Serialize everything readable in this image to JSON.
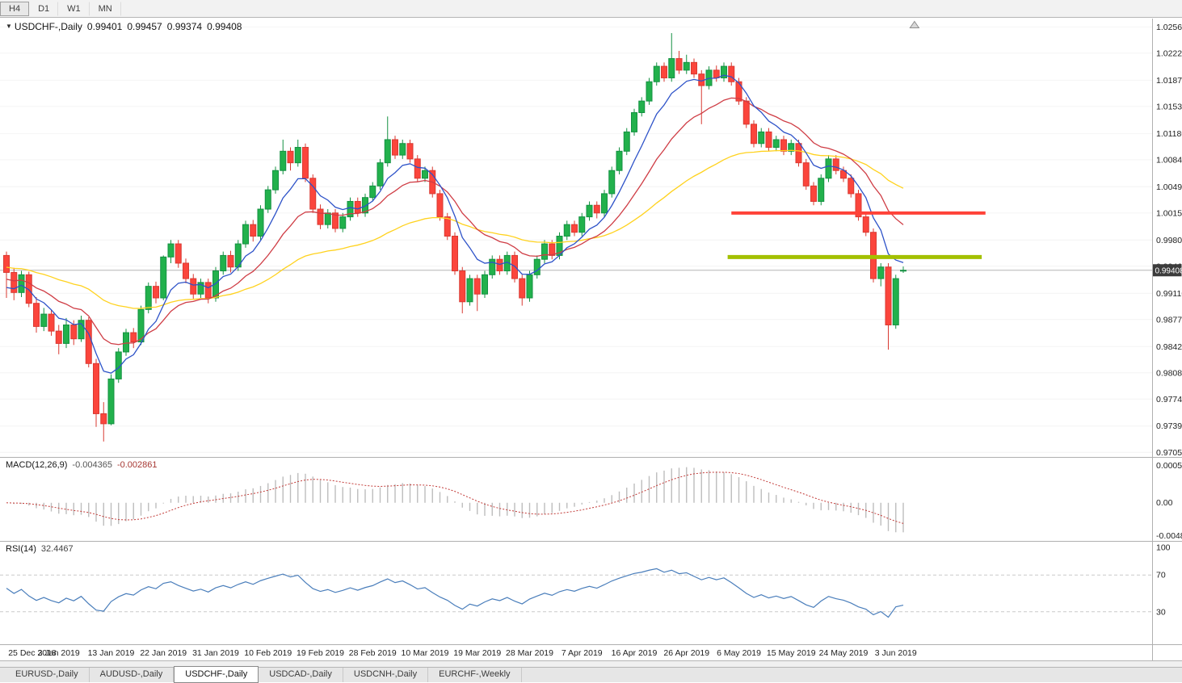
{
  "app": {
    "toolbar": {
      "timeframes": [
        {
          "label": "H4",
          "active": true
        },
        {
          "label": "D1",
          "active": false
        },
        {
          "label": "W1",
          "active": false
        },
        {
          "label": "MN",
          "active": false
        }
      ]
    },
    "tabs": [
      {
        "label": "EURUSD-,Daily",
        "active": false
      },
      {
        "label": "AUDUSD-,Daily",
        "active": false
      },
      {
        "label": "USDCHF-,Daily",
        "active": true
      },
      {
        "label": "USDCAD-,Daily",
        "active": false
      },
      {
        "label": "USDCNH-,Daily",
        "active": false
      },
      {
        "label": "EURCHF-,Weekly",
        "active": false
      }
    ]
  },
  "chart": {
    "title_symbol": "USDCHF-,Daily",
    "open": "0.99401",
    "high": "0.99457",
    "low": "0.99374",
    "close": "0.99408",
    "price_badge": "0.99408"
  },
  "indicators": {
    "macd": {
      "label": "MACD(12,26,9)",
      "main_value": "-0.004365",
      "signal_value": "-0.002861",
      "axis_max": "0.0005999",
      "axis_zero": "0.00",
      "axis_min": "-0.004858"
    },
    "rsi": {
      "label": "RSI(14)",
      "value": "32.4467",
      "axis": [
        "100",
        "70",
        "30"
      ],
      "levels": [
        70,
        30
      ]
    }
  },
  "chart_data": {
    "type": "candlestick",
    "symbol": "USDCHF",
    "timeframe": "Daily",
    "ylim": [
      0.9699,
      1.02595
    ],
    "price_axis": [
      "1.02560",
      "1.02220",
      "1.01870",
      "1.01530",
      "1.01180",
      "1.00840",
      "1.00490",
      "1.00150",
      "0.99800",
      "0.99460",
      "0.99110",
      "0.98770",
      "0.98420",
      "0.98080",
      "0.97740",
      "0.97390",
      "0.97050"
    ],
    "date_axis": [
      "25 Dec 2018",
      "3 Jan 2019",
      "13 Jan 2019",
      "22 Jan 2019",
      "31 Jan 2019",
      "10 Feb 2019",
      "19 Feb 2019",
      "28 Feb 2019",
      "10 Mar 2019",
      "19 Mar 2019",
      "28 Mar 2019",
      "7 Apr 2019",
      "16 Apr 2019",
      "26 Apr 2019",
      "6 May 2019",
      "15 May 2019",
      "24 May 2019",
      "3 Jun 2019"
    ],
    "date_tick_interval": 7,
    "current_price": 0.99408,
    "colors": {
      "bull": "#22b14c",
      "bull_border": "#149142",
      "bear": "#fb453c",
      "bear_border": "#d93a32",
      "ma_fast": "#2d52c8",
      "ma_mid": "#cf3d45",
      "ma_slow": "#ffd21e",
      "macd_hist": "#bdbdbd",
      "macd_signal": "#c23b38",
      "rsi": "#4a7ebb",
      "resistance": "#ff4238",
      "support": "#a3c000",
      "current_price_line": "#b5b5b5",
      "badge_bg": "#3c3c3c",
      "grid": "#f4f4f4",
      "level_dash": "#c9c9c9"
    },
    "moving_averages": [
      {
        "period": 7,
        "seed": 0.9912,
        "color_key": "ma_fast"
      },
      {
        "period": 16,
        "seed": 0.9928,
        "color_key": "ma_mid"
      },
      {
        "period": 45,
        "seed": 0.9945,
        "color_key": "ma_slow"
      }
    ],
    "macd_params": {
      "fast": 12,
      "slow": 26,
      "signal": 9
    },
    "rsi_period": 14,
    "horizontal_lines": [
      {
        "price": 1.0015,
        "from_index": 97,
        "to_index": 131,
        "color_key": "resistance",
        "width": 4
      },
      {
        "price": 0.9958,
        "from_index": 96.5,
        "to_index": 130.5,
        "color_key": "support",
        "width": 5
      }
    ],
    "shift_marker_index": 121.5,
    "candles": [
      [
        0.996,
        0.9965,
        0.9905,
        0.9938
      ],
      [
        0.9938,
        0.9944,
        0.9902,
        0.9912
      ],
      [
        0.9912,
        0.994,
        0.9906,
        0.9935
      ],
      [
        0.9935,
        0.9939,
        0.9893,
        0.9898
      ],
      [
        0.9898,
        0.9906,
        0.986,
        0.9868
      ],
      [
        0.9868,
        0.9892,
        0.9862,
        0.9884
      ],
      [
        0.9884,
        0.989,
        0.9856,
        0.9862
      ],
      [
        0.9862,
        0.987,
        0.9832,
        0.9846
      ],
      [
        0.9846,
        0.9879,
        0.984,
        0.987
      ],
      [
        0.987,
        0.9876,
        0.9844,
        0.9852
      ],
      [
        0.9852,
        0.9882,
        0.9848,
        0.9876
      ],
      [
        0.9876,
        0.988,
        0.9815,
        0.982
      ],
      [
        0.982,
        0.9826,
        0.9738,
        0.9755
      ],
      [
        0.9755,
        0.977,
        0.9719,
        0.9742
      ],
      [
        0.9742,
        0.9806,
        0.974,
        0.98
      ],
      [
        0.98,
        0.984,
        0.9795,
        0.9835
      ],
      [
        0.9835,
        0.9865,
        0.983,
        0.986
      ],
      [
        0.986,
        0.9866,
        0.984,
        0.9848
      ],
      [
        0.9848,
        0.9895,
        0.9844,
        0.989
      ],
      [
        0.989,
        0.9925,
        0.9885,
        0.992
      ],
      [
        0.992,
        0.9926,
        0.9898,
        0.9905
      ],
      [
        0.9905,
        0.996,
        0.9902,
        0.9958
      ],
      [
        0.9958,
        0.998,
        0.995,
        0.9975
      ],
      [
        0.9975,
        0.998,
        0.9944,
        0.995
      ],
      [
        0.995,
        0.9956,
        0.9924,
        0.993
      ],
      [
        0.993,
        0.9936,
        0.9904,
        0.991
      ],
      [
        0.991,
        0.993,
        0.9905,
        0.9925
      ],
      [
        0.9925,
        0.993,
        0.9898,
        0.9905
      ],
      [
        0.9905,
        0.9945,
        0.99,
        0.994
      ],
      [
        0.994,
        0.9965,
        0.9935,
        0.996
      ],
      [
        0.996,
        0.9966,
        0.9938,
        0.9945
      ],
      [
        0.9945,
        0.998,
        0.994,
        0.9975
      ],
      [
        0.9975,
        1.0005,
        0.997,
        1.0
      ],
      [
        1.0,
        1.0006,
        0.9978,
        0.9985
      ],
      [
        0.9985,
        1.0025,
        0.998,
        1.002
      ],
      [
        1.002,
        1.005,
        1.0015,
        1.0045
      ],
      [
        1.0045,
        1.0075,
        1.004,
        1.007
      ],
      [
        1.007,
        1.011,
        1.0065,
        1.0095
      ],
      [
        1.0095,
        1.01,
        1.007,
        1.008
      ],
      [
        1.008,
        1.011,
        1.0075,
        1.01
      ],
      [
        1.01,
        1.0105,
        1.0055,
        1.006
      ],
      [
        1.006,
        1.0065,
        1.0015,
        1.002
      ],
      [
        1.002,
        1.0026,
        0.9994,
        1.0
      ],
      [
        1.0,
        1.002,
        0.9995,
        1.0015
      ],
      [
        1.0015,
        1.002,
        0.999,
        0.9995
      ],
      [
        0.9995,
        1.0015,
        0.999,
        1.001
      ],
      [
        1.001,
        1.0035,
        1.0005,
        1.003
      ],
      [
        1.003,
        1.0035,
        1.001,
        1.0015
      ],
      [
        1.0015,
        1.004,
        1.001,
        1.0035
      ],
      [
        1.0035,
        1.0055,
        1.003,
        1.005
      ],
      [
        1.005,
        1.0085,
        1.0045,
        1.008
      ],
      [
        1.008,
        1.014,
        1.0075,
        1.011
      ],
      [
        1.011,
        1.0115,
        1.0085,
        1.009
      ],
      [
        1.009,
        1.011,
        1.0085,
        1.0105
      ],
      [
        1.0105,
        1.011,
        1.008,
        1.0085
      ],
      [
        1.0085,
        1.009,
        1.0055,
        1.006
      ],
      [
        1.006,
        1.0075,
        1.0055,
        1.007
      ],
      [
        1.007,
        1.0075,
        1.0035,
        1.004
      ],
      [
        1.004,
        1.0045,
        1.0005,
        1.001
      ],
      [
        1.001,
        1.0015,
        0.998,
        0.9985
      ],
      [
        0.9985,
        0.999,
        0.9935,
        0.994
      ],
      [
        0.994,
        0.9945,
        0.9885,
        0.99
      ],
      [
        0.99,
        0.9935,
        0.9895,
        0.993
      ],
      [
        0.993,
        0.9935,
        0.9888,
        0.991
      ],
      [
        0.991,
        0.994,
        0.9905,
        0.9935
      ],
      [
        0.9935,
        0.996,
        0.993,
        0.9955
      ],
      [
        0.9955,
        0.996,
        0.9935,
        0.994
      ],
      [
        0.994,
        0.9965,
        0.9935,
        0.996
      ],
      [
        0.996,
        0.9965,
        0.9925,
        0.993
      ],
      [
        0.993,
        0.9935,
        0.9895,
        0.9905
      ],
      [
        0.9905,
        0.994,
        0.99,
        0.9935
      ],
      [
        0.9935,
        0.996,
        0.993,
        0.9955
      ],
      [
        0.9955,
        0.998,
        0.995,
        0.9975
      ],
      [
        0.9975,
        0.998,
        0.9955,
        0.996
      ],
      [
        0.996,
        0.999,
        0.9955,
        0.9985
      ],
      [
        0.9985,
        1.0005,
        0.998,
        1.0
      ],
      [
        1.0,
        1.0005,
        0.9985,
        0.999
      ],
      [
        0.999,
        1.0015,
        0.9985,
        1.001
      ],
      [
        1.001,
        1.003,
        1.0005,
        1.0025
      ],
      [
        1.0025,
        1.003,
        1.0008,
        1.0015
      ],
      [
        1.0015,
        1.0045,
        1.001,
        1.004
      ],
      [
        1.004,
        1.0075,
        1.0035,
        1.007
      ],
      [
        1.007,
        1.01,
        1.0065,
        1.0095
      ],
      [
        1.0095,
        1.0125,
        1.009,
        1.012
      ],
      [
        1.012,
        1.015,
        1.0115,
        1.0145
      ],
      [
        1.0145,
        1.0165,
        1.014,
        1.016
      ],
      [
        1.016,
        1.019,
        1.0155,
        1.0185
      ],
      [
        1.0185,
        1.021,
        1.018,
        1.0205
      ],
      [
        1.0205,
        1.021,
        1.0185,
        1.019
      ],
      [
        1.019,
        1.0248,
        1.0185,
        1.0215
      ],
      [
        1.0215,
        1.0225,
        1.0195,
        1.02
      ],
      [
        1.02,
        1.022,
        1.0195,
        1.021
      ],
      [
        1.021,
        1.0215,
        1.019,
        1.0195
      ],
      [
        1.0195,
        1.02,
        1.013,
        1.018
      ],
      [
        1.018,
        1.0205,
        1.0175,
        1.02
      ],
      [
        1.02,
        1.0206,
        1.0185,
        1.019
      ],
      [
        1.019,
        1.021,
        1.0185,
        1.0205
      ],
      [
        1.0205,
        1.021,
        1.018,
        1.0185
      ],
      [
        1.0185,
        1.019,
        1.0155,
        1.016
      ],
      [
        1.016,
        1.0165,
        1.0125,
        1.013
      ],
      [
        1.013,
        1.0135,
        1.01,
        1.0105
      ],
      [
        1.0105,
        1.0125,
        1.01,
        1.012
      ],
      [
        1.012,
        1.0125,
        1.0095,
        1.01
      ],
      [
        1.01,
        1.0115,
        1.0095,
        1.011
      ],
      [
        1.011,
        1.0115,
        1.009,
        1.0095
      ],
      [
        1.0095,
        1.011,
        1.009,
        1.0105
      ],
      [
        1.0105,
        1.011,
        1.0075,
        1.008
      ],
      [
        1.008,
        1.0085,
        1.0045,
        1.005
      ],
      [
        1.005,
        1.0055,
        1.0025,
        1.003
      ],
      [
        1.003,
        1.0065,
        1.0025,
        1.006
      ],
      [
        1.006,
        1.009,
        1.0055,
        1.0085
      ],
      [
        1.0085,
        1.009,
        1.0065,
        1.007
      ],
      [
        1.007,
        1.0075,
        1.0055,
        1.006
      ],
      [
        1.006,
        1.0065,
        1.0035,
        1.004
      ],
      [
        1.004,
        1.0045,
        1.0005,
        1.001
      ],
      [
        1.001,
        1.0015,
        0.9985,
        0.999
      ],
      [
        0.999,
        0.9995,
        0.9925,
        0.993
      ],
      [
        0.993,
        0.995,
        0.992,
        0.9945
      ],
      [
        0.9945,
        0.995,
        0.9838,
        0.987
      ],
      [
        0.987,
        0.9935,
        0.9865,
        0.993
      ],
      [
        0.99401,
        0.99457,
        0.99374,
        0.99408
      ]
    ]
  }
}
